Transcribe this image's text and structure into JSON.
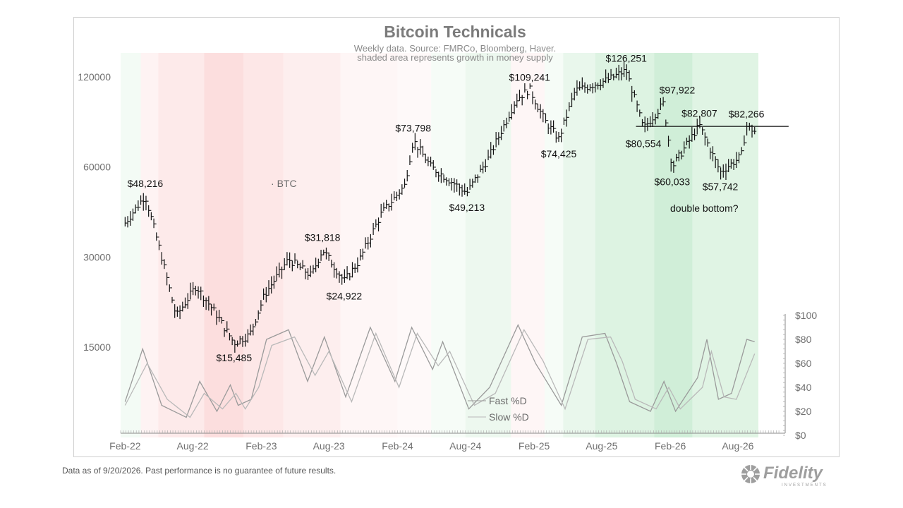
{
  "header": {
    "title": "Bitcoin Technicals",
    "subtitle_line1": "Weekly data.  Source: FMRCo, Bloomberg, Haver.",
    "subtitle_line2": "shaded area represents growth in money supply"
  },
  "footer": {
    "disclaimer": "Data as of 9/20/2026. Past performance is no guarantee of future results."
  },
  "brand": {
    "name": "Fidelity",
    "sub": "INVESTMENTS"
  },
  "colors": {
    "price": "#111111",
    "fast": "#9a9a9a",
    "slow": "#b9b9b9",
    "positive": "#3cb95a",
    "negative": "#f06b6b",
    "axis": "#888888"
  },
  "chart_data": [
    {
      "type": "ohlc-line",
      "series_name": "BTC",
      "x_ticks": [
        "Feb-22",
        "Aug-22",
        "Feb-23",
        "Aug-23",
        "Feb-24",
        "Aug-24",
        "Feb-25",
        "Aug-25",
        "Feb-26",
        "Aug-26"
      ],
      "y_scale": "log",
      "y_ticks": [
        15000,
        30000,
        60000,
        120000
      ],
      "y_tick_labels": [
        "15000",
        "30000",
        "60000",
        "120000"
      ],
      "key_points": [
        {
          "x": "2022-02-01",
          "y": 39000
        },
        {
          "x": "2022-03-27",
          "y": 48216
        },
        {
          "x": "2022-05-10",
          "y": 30000
        },
        {
          "x": "2022-06-18",
          "y": 19000
        },
        {
          "x": "2022-08-10",
          "y": 24000
        },
        {
          "x": "2022-10-01",
          "y": 19500
        },
        {
          "x": "2022-11-20",
          "y": 15485
        },
        {
          "x": "2023-01-01",
          "y": 16500
        },
        {
          "x": "2023-02-10",
          "y": 22500
        },
        {
          "x": "2023-04-15",
          "y": 29500
        },
        {
          "x": "2023-06-15",
          "y": 26000
        },
        {
          "x": "2023-07-15",
          "y": 31818
        },
        {
          "x": "2023-09-11",
          "y": 24922
        },
        {
          "x": "2023-10-20",
          "y": 29000
        },
        {
          "x": "2023-12-20",
          "y": 42000
        },
        {
          "x": "2024-02-20",
          "y": 52000
        },
        {
          "x": "2024-03-14",
          "y": 73798
        },
        {
          "x": "2024-05-01",
          "y": 60000
        },
        {
          "x": "2024-08-05",
          "y": 49213
        },
        {
          "x": "2024-10-01",
          "y": 64000
        },
        {
          "x": "2024-12-15",
          "y": 101000
        },
        {
          "x": "2025-01-20",
          "y": 109241
        },
        {
          "x": "2025-03-01",
          "y": 86000
        },
        {
          "x": "2025-04-08",
          "y": 74425
        },
        {
          "x": "2025-05-22",
          "y": 108000
        },
        {
          "x": "2025-08-15",
          "y": 117000
        },
        {
          "x": "2025-10-06",
          "y": 126251
        },
        {
          "x": "2025-11-21",
          "y": 80554
        },
        {
          "x": "2026-01-14",
          "y": 97922
        },
        {
          "x": "2026-02-06",
          "y": 60033
        },
        {
          "x": "2026-04-20",
          "y": 82807
        },
        {
          "x": "2026-06-15",
          "y": 57742
        },
        {
          "x": "2026-08-10",
          "y": 65000
        },
        {
          "x": "2026-08-24",
          "y": 82266
        },
        {
          "x": "2026-09-15",
          "y": 79000
        }
      ],
      "annotations": [
        {
          "label": "$48,216",
          "x": "2022-03-27",
          "y": 48216,
          "pos": "above"
        },
        {
          "label": "$15,485",
          "x": "2022-11-20",
          "y": 15485,
          "pos": "below"
        },
        {
          "label": "$31,818",
          "x": "2023-07-15",
          "y": 31818,
          "pos": "above"
        },
        {
          "label": "$24,922",
          "x": "2023-09-11",
          "y": 24922,
          "pos": "below"
        },
        {
          "label": "$73,798",
          "x": "2024-03-14",
          "y": 73798,
          "pos": "above"
        },
        {
          "label": "$49,213",
          "x": "2024-08-05",
          "y": 49213,
          "pos": "below"
        },
        {
          "label": "$109,241",
          "x": "2025-01-20",
          "y": 109241,
          "pos": "above"
        },
        {
          "label": "$74,425",
          "x": "2025-04-08",
          "y": 74425,
          "pos": "below"
        },
        {
          "label": "$126,251",
          "x": "2025-10-06",
          "y": 126251,
          "pos": "above"
        },
        {
          "label": "$97,922",
          "x": "2026-01-14",
          "y": 97922,
          "pos": "above-right"
        },
        {
          "label": "$80,554",
          "x": "2025-11-21",
          "y": 80554,
          "pos": "below"
        },
        {
          "label": "$82,807",
          "x": "2026-04-20",
          "y": 82807,
          "pos": "above"
        },
        {
          "label": "$60,033",
          "x": "2026-02-06",
          "y": 60033,
          "pos": "below"
        },
        {
          "label": "$57,742",
          "x": "2026-06-15",
          "y": 57742,
          "pos": "below"
        },
        {
          "label": "$82,266",
          "x": "2026-08-24",
          "y": 82266,
          "pos": "above"
        }
      ],
      "horizontal_line": {
        "y": 82000,
        "x_start": "2025-11-01",
        "x_end": "2026-12-15"
      },
      "text_notes": [
        {
          "text": "double bottom?",
          "x": "2026-03-25",
          "y": 45500
        }
      ],
      "legend": [
        {
          "text": "BTC",
          "position": "upper-left"
        }
      ]
    },
    {
      "type": "line",
      "title": "",
      "y_ticks": [
        0,
        20,
        40,
        60,
        80,
        100
      ],
      "y_tick_labels": [
        "$0",
        "$20",
        "$40",
        "$60",
        "$80",
        "$100"
      ],
      "ylim": [
        0,
        100
      ],
      "series": [
        {
          "name": "Fast %D",
          "points": [
            {
              "x": "2022-02-01",
              "y": 28
            },
            {
              "x": "2022-03-20",
              "y": 72
            },
            {
              "x": "2022-05-10",
              "y": 25
            },
            {
              "x": "2022-07-15",
              "y": 15
            },
            {
              "x": "2022-08-20",
              "y": 45
            },
            {
              "x": "2022-10-05",
              "y": 20
            },
            {
              "x": "2022-11-10",
              "y": 42
            },
            {
              "x": "2022-12-01",
              "y": 25
            },
            {
              "x": "2023-01-05",
              "y": 30
            },
            {
              "x": "2023-02-15",
              "y": 80
            },
            {
              "x": "2023-04-15",
              "y": 88
            },
            {
              "x": "2023-06-05",
              "y": 45
            },
            {
              "x": "2023-07-20",
              "y": 82
            },
            {
              "x": "2023-09-15",
              "y": 32
            },
            {
              "x": "2023-11-20",
              "y": 90
            },
            {
              "x": "2024-01-25",
              "y": 45
            },
            {
              "x": "2024-03-10",
              "y": 90
            },
            {
              "x": "2024-05-05",
              "y": 55
            },
            {
              "x": "2024-06-01",
              "y": 78
            },
            {
              "x": "2024-08-10",
              "y": 22
            },
            {
              "x": "2024-10-05",
              "y": 40
            },
            {
              "x": "2024-12-20",
              "y": 92
            },
            {
              "x": "2025-02-05",
              "y": 60
            },
            {
              "x": "2025-04-15",
              "y": 25
            },
            {
              "x": "2025-06-10",
              "y": 82
            },
            {
              "x": "2025-08-10",
              "y": 85
            },
            {
              "x": "2025-09-10",
              "y": 60
            },
            {
              "x": "2025-10-15",
              "y": 28
            },
            {
              "x": "2025-12-10",
              "y": 20
            },
            {
              "x": "2026-01-15",
              "y": 45
            },
            {
              "x": "2026-02-15",
              "y": 20
            },
            {
              "x": "2026-04-15",
              "y": 48
            },
            {
              "x": "2026-05-10",
              "y": 80
            },
            {
              "x": "2026-06-10",
              "y": 30
            },
            {
              "x": "2026-07-15",
              "y": 35
            },
            {
              "x": "2026-08-25",
              "y": 80
            },
            {
              "x": "2026-09-15",
              "y": 78
            }
          ]
        },
        {
          "name": "Slow %D",
          "points": [
            {
              "x": "2022-02-01",
              "y": 25
            },
            {
              "x": "2022-04-01",
              "y": 60
            },
            {
              "x": "2022-05-25",
              "y": 30
            },
            {
              "x": "2022-07-25",
              "y": 15
            },
            {
              "x": "2022-09-01",
              "y": 35
            },
            {
              "x": "2022-10-20",
              "y": 22
            },
            {
              "x": "2022-11-25",
              "y": 35
            },
            {
              "x": "2022-12-20",
              "y": 22
            },
            {
              "x": "2023-01-25",
              "y": 40
            },
            {
              "x": "2023-03-01",
              "y": 75
            },
            {
              "x": "2023-05-01",
              "y": 82
            },
            {
              "x": "2023-06-25",
              "y": 50
            },
            {
              "x": "2023-08-01",
              "y": 70
            },
            {
              "x": "2023-10-01",
              "y": 28
            },
            {
              "x": "2023-12-05",
              "y": 85
            },
            {
              "x": "2024-02-05",
              "y": 40
            },
            {
              "x": "2024-03-25",
              "y": 85
            },
            {
              "x": "2024-05-20",
              "y": 58
            },
            {
              "x": "2024-06-20",
              "y": 70
            },
            {
              "x": "2024-08-25",
              "y": 25
            },
            {
              "x": "2024-10-20",
              "y": 35
            },
            {
              "x": "2025-01-05",
              "y": 88
            },
            {
              "x": "2025-02-25",
              "y": 62
            },
            {
              "x": "2025-04-25",
              "y": 22
            },
            {
              "x": "2025-06-25",
              "y": 80
            },
            {
              "x": "2025-08-25",
              "y": 82
            },
            {
              "x": "2025-09-25",
              "y": 62
            },
            {
              "x": "2025-10-30",
              "y": 30
            },
            {
              "x": "2025-12-25",
              "y": 22
            },
            {
              "x": "2026-01-28",
              "y": 40
            },
            {
              "x": "2026-02-28",
              "y": 22
            },
            {
              "x": "2026-04-28",
              "y": 40
            },
            {
              "x": "2026-05-22",
              "y": 70
            },
            {
              "x": "2026-06-25",
              "y": 32
            },
            {
              "x": "2026-07-28",
              "y": 30
            },
            {
              "x": "2026-09-15",
              "y": 68
            }
          ]
        }
      ],
      "legend": [
        {
          "text": "Fast %D",
          "position": "center"
        },
        {
          "text": "Slow %D",
          "position": "center"
        }
      ]
    }
  ],
  "shading": {
    "description_key": "header.subtitle_line2",
    "bands": [
      {
        "from": "2022-01-20",
        "to": "2022-03-15",
        "sign": "positive",
        "intensity": 0.2
      },
      {
        "from": "2022-03-15",
        "to": "2022-05-01",
        "sign": "negative",
        "intensity": 0.25
      },
      {
        "from": "2022-05-01",
        "to": "2022-09-01",
        "sign": "negative",
        "intensity": 0.45
      },
      {
        "from": "2022-09-01",
        "to": "2022-12-15",
        "sign": "negative",
        "intensity": 0.7
      },
      {
        "from": "2022-12-15",
        "to": "2023-04-01",
        "sign": "negative",
        "intensity": 0.5
      },
      {
        "from": "2023-04-01",
        "to": "2023-09-01",
        "sign": "negative",
        "intensity": 0.35
      },
      {
        "from": "2023-09-01",
        "to": "2024-02-01",
        "sign": "negative",
        "intensity": 0.2
      },
      {
        "from": "2024-02-01",
        "to": "2024-05-01",
        "sign": "negative",
        "intensity": 0.12
      },
      {
        "from": "2024-05-01",
        "to": "2024-08-01",
        "sign": "positive",
        "intensity": 0.15
      },
      {
        "from": "2024-08-01",
        "to": "2024-12-01",
        "sign": "positive",
        "intensity": 0.3
      },
      {
        "from": "2024-12-01",
        "to": "2025-03-01",
        "sign": "negative",
        "intensity": 0.2
      },
      {
        "from": "2025-03-01",
        "to": "2025-04-20",
        "sign": "positive",
        "intensity": 0.15
      },
      {
        "from": "2025-04-20",
        "to": "2025-07-15",
        "sign": "positive",
        "intensity": 0.35
      },
      {
        "from": "2025-07-15",
        "to": "2025-12-20",
        "sign": "positive",
        "intensity": 0.55
      },
      {
        "from": "2025-12-20",
        "to": "2026-04-01",
        "sign": "positive",
        "intensity": 0.75
      },
      {
        "from": "2026-04-01",
        "to": "2026-09-25",
        "sign": "positive",
        "intensity": 0.5
      }
    ]
  }
}
